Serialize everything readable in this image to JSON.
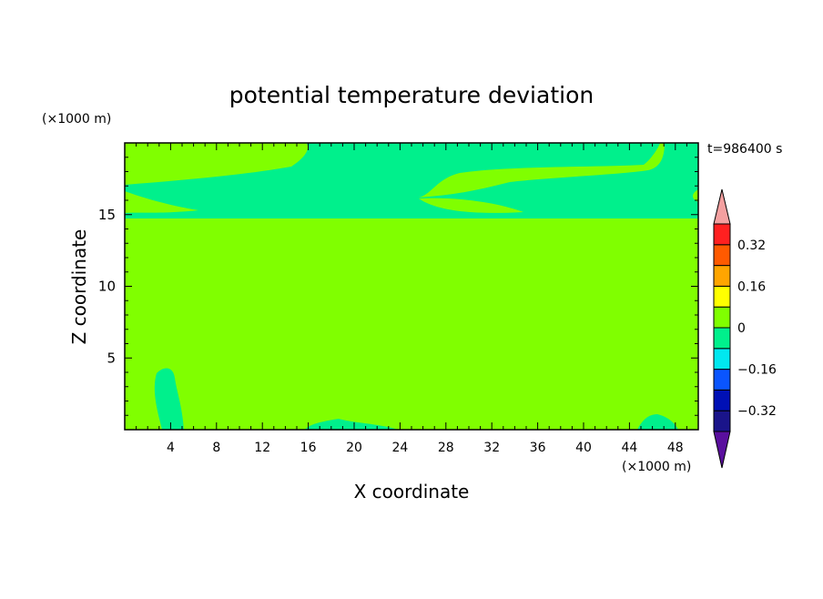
{
  "chart_data": {
    "type": "heatmap",
    "title": "potential temperature deviation",
    "xlabel": "X coordinate",
    "ylabel": "Z coordinate",
    "x_unit": "(×1000 m)",
    "y_unit": "(×1000 m)",
    "time_label": "t=986400 s",
    "xlim": [
      0,
      50
    ],
    "ylim": [
      0,
      20
    ],
    "x_ticks": [
      4,
      8,
      12,
      16,
      20,
      24,
      28,
      32,
      36,
      40,
      44,
      48
    ],
    "y_ticks": [
      5,
      10,
      15
    ],
    "colorbar": {
      "levels": [
        -0.4,
        -0.32,
        -0.24,
        -0.16,
        -0.08,
        0,
        0.08,
        0.16,
        0.24,
        0.32,
        0.4
      ],
      "labels": [
        "0.32",
        "0.16",
        "0",
        "−0.16",
        "−0.32"
      ],
      "colors": [
        "#5a0f9e",
        "#1a148a",
        "#0010b5",
        "#0a55ff",
        "#00e8f0",
        "#00f08c",
        "#80ff00",
        "#ffff00",
        "#ffa500",
        "#ff5a00",
        "#ff2020",
        "#f4a0a0"
      ]
    },
    "fields": {
      "positive": {
        "range": [
          0,
          0.08
        ],
        "color": "#80ff00"
      },
      "negative": {
        "range": [
          -0.08,
          0
        ],
        "color": "#00f08c"
      }
    }
  }
}
